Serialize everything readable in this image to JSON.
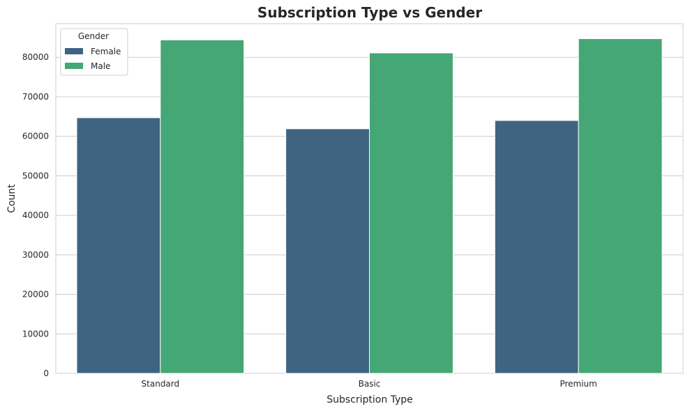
{
  "chart_data": {
    "type": "bar",
    "title": "Subscription Type vs Gender",
    "xlabel": "Subscription Type",
    "ylabel": "Count",
    "categories": [
      "Standard",
      "Basic",
      "Premium"
    ],
    "series": [
      {
        "name": "Female",
        "color": "#3e6482",
        "values": [
          64700,
          61900,
          64000
        ]
      },
      {
        "name": "Male",
        "color": "#44a775",
        "values": [
          84400,
          81100,
          84700
        ]
      }
    ],
    "ylim": [
      0,
      88500
    ],
    "yticks": [
      0,
      10000,
      20000,
      30000,
      40000,
      50000,
      60000,
      70000,
      80000
    ],
    "grid": true,
    "legend": {
      "title": "Gender",
      "position": "upper left"
    }
  }
}
